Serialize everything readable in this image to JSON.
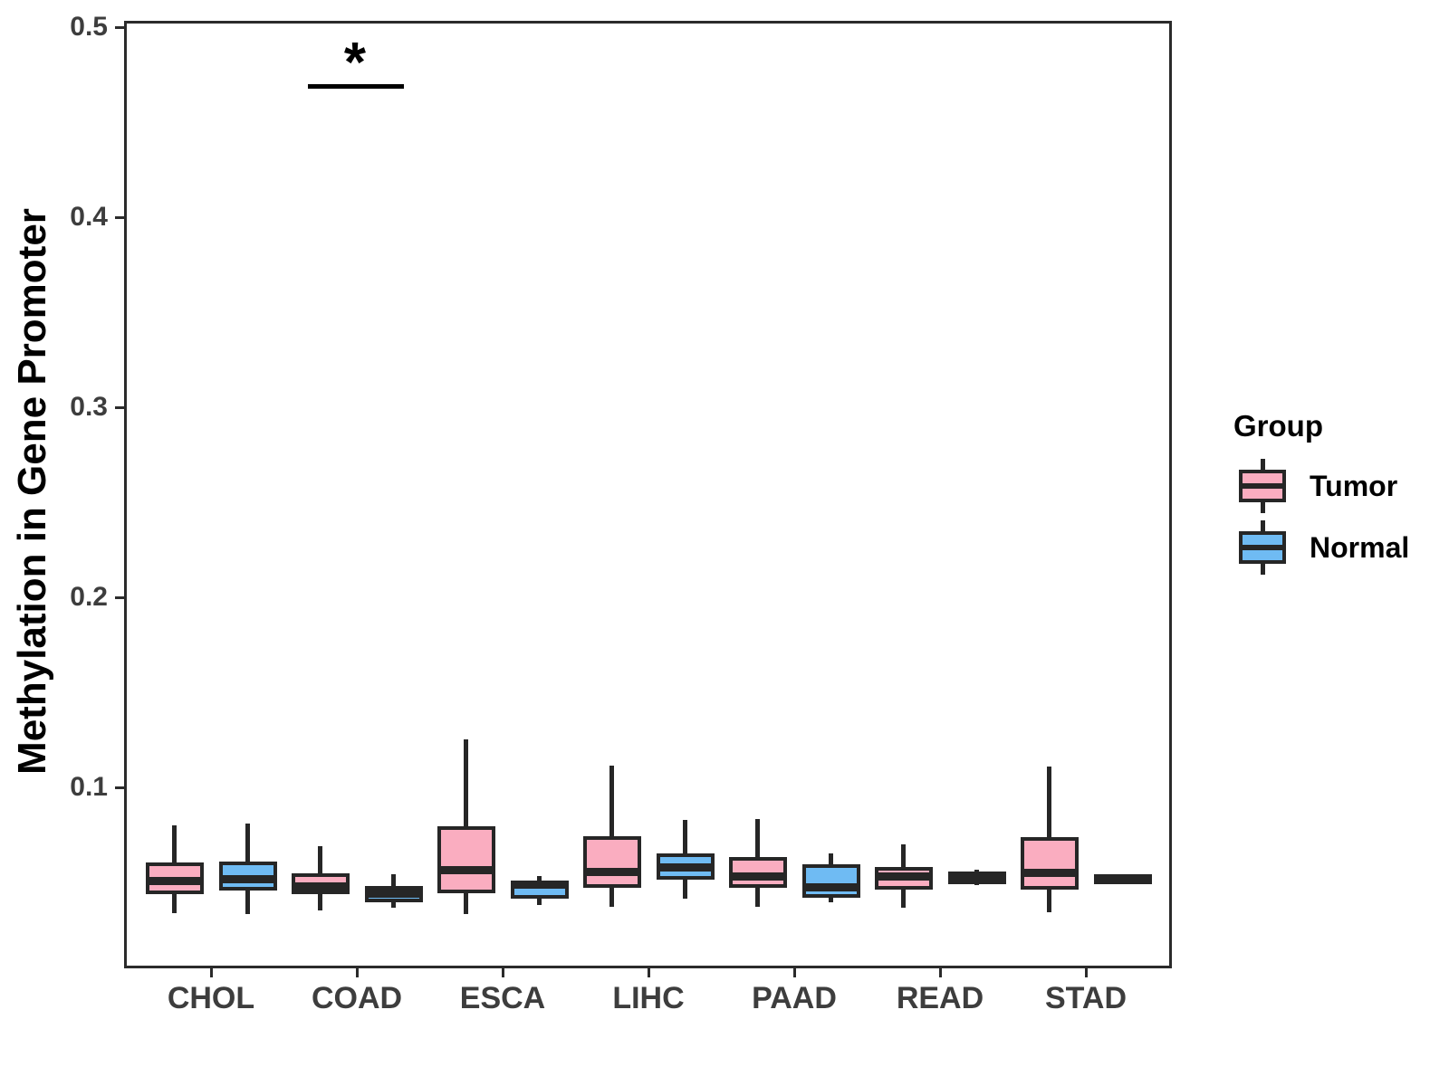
{
  "chart_data": {
    "type": "boxplot",
    "title": "",
    "xlabel": "",
    "ylabel": "Methylation in Gene Promoter",
    "categories": [
      "CHOL",
      "COAD",
      "ESCA",
      "LIHC",
      "PAAD",
      "READ",
      "STAD"
    ],
    "y_axis": {
      "ticks": [
        0.5,
        0.4,
        0.3,
        0.2,
        0.1
      ],
      "range": [
        0.005,
        0.503
      ],
      "grid": false
    },
    "legend": {
      "title": "Group",
      "position": "right"
    },
    "series": [
      {
        "name": "Tumor",
        "color": "#FAADC0",
        "boxes": [
          {
            "category": "CHOL",
            "whisker_low": 0.034,
            "q1": 0.0437,
            "median": 0.0508,
            "q3": 0.0606,
            "whisker_high": 0.0802
          },
          {
            "category": "COAD",
            "whisker_low": 0.035,
            "q1": 0.0437,
            "median": 0.0478,
            "q3": 0.0548,
            "whisker_high": 0.069
          },
          {
            "category": "ESCA",
            "whisker_low": 0.0333,
            "q1": 0.0444,
            "median": 0.0563,
            "q3": 0.0794,
            "whisker_high": 0.1252
          },
          {
            "category": "LIHC",
            "whisker_low": 0.0373,
            "q1": 0.0473,
            "median": 0.0554,
            "q3": 0.0741,
            "whisker_high": 0.1114
          },
          {
            "category": "PAAD",
            "whisker_low": 0.0373,
            "q1": 0.0471,
            "median": 0.053,
            "q3": 0.0635,
            "whisker_high": 0.0833
          },
          {
            "category": "READ",
            "whisker_low": 0.0368,
            "q1": 0.046,
            "median": 0.0531,
            "q3": 0.058,
            "whisker_high": 0.0698
          },
          {
            "category": "STAD",
            "whisker_low": 0.0341,
            "q1": 0.0463,
            "median": 0.0548,
            "q3": 0.0738,
            "whisker_high": 0.1111
          }
        ]
      },
      {
        "name": "Normal",
        "color": "#6FBBF3",
        "boxes": [
          {
            "category": "CHOL",
            "whisker_low": 0.0333,
            "q1": 0.0456,
            "median": 0.0519,
            "q3": 0.0611,
            "whisker_high": 0.081
          },
          {
            "category": "COAD",
            "whisker_low": 0.0365,
            "q1": 0.0397,
            "median": 0.044,
            "q3": 0.0481,
            "whisker_high": 0.0544
          },
          {
            "category": "ESCA",
            "whisker_low": 0.038,
            "q1": 0.0413,
            "median": 0.0486,
            "q3": 0.0511,
            "whisker_high": 0.0532
          },
          {
            "category": "LIHC",
            "whisker_low": 0.0413,
            "q1": 0.0516,
            "median": 0.058,
            "q3": 0.0654,
            "whisker_high": 0.0829
          },
          {
            "category": "PAAD",
            "whisker_low": 0.0397,
            "q1": 0.042,
            "median": 0.0473,
            "q3": 0.0595,
            "whisker_high": 0.0651
          },
          {
            "category": "READ",
            "whisker_low": 0.0485,
            "q1": 0.049,
            "median": 0.0529,
            "q3": 0.0556,
            "whisker_high": 0.0568
          },
          {
            "category": "STAD",
            "whisker_low": 0.051,
            "q1": 0.0513,
            "median": 0.052,
            "q3": 0.0527,
            "whisker_high": 0.053
          }
        ]
      }
    ],
    "annotations": [
      {
        "group": "COAD",
        "label": "*",
        "y": 0.47
      }
    ],
    "style": {
      "box_border_color": "#262626",
      "axis_color": "#2b2b2b",
      "tick_label_color": "#3d3d3d",
      "background": "#ffffff"
    }
  }
}
